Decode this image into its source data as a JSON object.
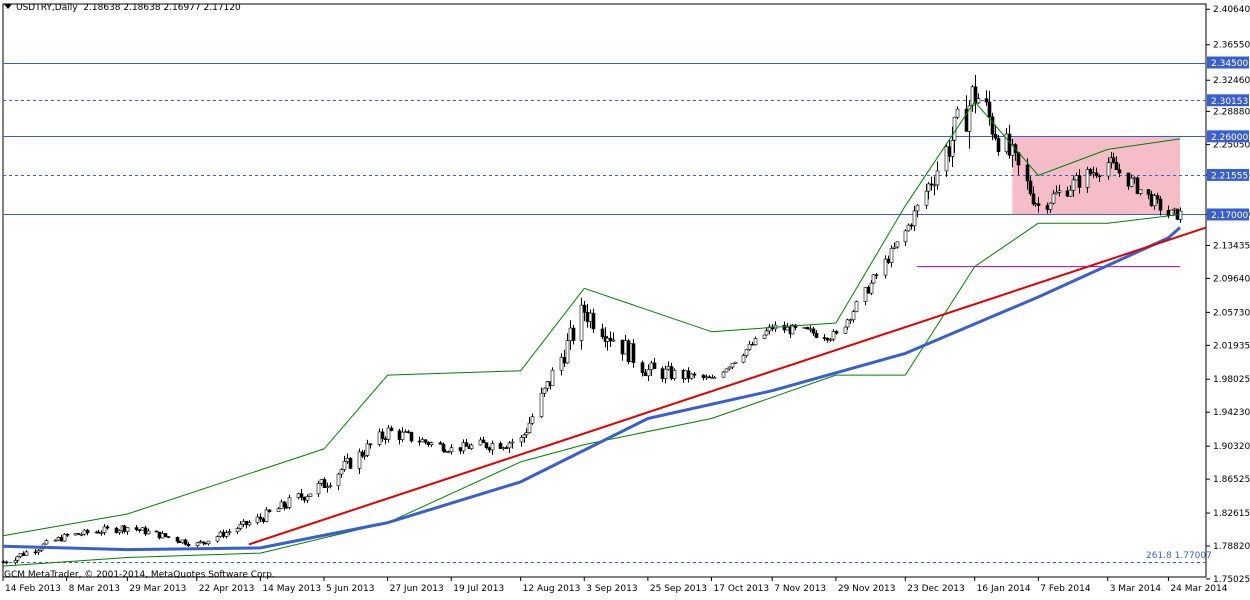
{
  "header": {
    "symbol": "USDTRY,Daily",
    "ohlc": "2.18638 2.18638 2.16977 2.17120"
  },
  "footer": {
    "copyright": "GCM MetaTrader, © 2001-2014, MetaQuotes Software Corp."
  },
  "annotations": {
    "fibo_label": "261.8 1.77007"
  },
  "colors": {
    "background": "#ffffff",
    "candle": "#000000",
    "bollinger": "#008000",
    "ma_long": "#3a5fcd",
    "trendline": "#dd0000",
    "hline": "#3a5fcd",
    "box_fill": "#f4b6c2",
    "grid": "#c0c0c0",
    "magenta_line": "#aa00aa"
  },
  "chart_data": {
    "type": "candlestick",
    "title": "USDTRY,Daily",
    "ylim": [
      1.7525,
      2.4124
    ],
    "y_ticks": [
      "2.40640",
      "2.36550",
      "2.32460",
      "2.28880",
      "2.25050",
      "2.21555",
      "2.17000",
      "2.13435",
      "2.09640",
      "2.05730",
      "2.01935",
      "1.98025",
      "1.94230",
      "1.90320",
      "1.86525",
      "1.82615",
      "1.78820",
      "1.75025"
    ],
    "x_ticks": [
      "14 Feb 2013",
      "8 Mar 2013",
      "29 Mar 2013",
      "22 Apr 2013",
      "14 May 2013",
      "5 Jun 2013",
      "27 Jun 2013",
      "19 Jul 2013",
      "12 Aug 2013",
      "3 Sep 2013",
      "25 Sep 2013",
      "17 Oct 2013",
      "7 Nov 2013",
      "29 Nov 2013",
      "23 Dec 2013",
      "16 Jan 2014",
      "7 Feb 2014",
      "3 Mar 2014",
      "24 Mar 2014"
    ],
    "levels": [
      {
        "value": 2.345,
        "label": "2.34500",
        "style": "solid"
      },
      {
        "value": 2.30153,
        "label": "2.30153",
        "style": "dashed"
      },
      {
        "value": 2.26,
        "label": "2.26000",
        "style": "solid"
      },
      {
        "value": 2.21555,
        "label": "2.21555",
        "style": "dashed"
      },
      {
        "value": 2.17,
        "label": "2.17000",
        "style": "solid"
      },
      {
        "value": 1.77007,
        "label": "",
        "style": "dashed"
      }
    ],
    "range_box": {
      "x_from": "29 Jan 2014",
      "x_to": "28 Mar 2014",
      "y_from": 2.17,
      "y_to": 2.26
    },
    "magenta_line": {
      "x_from": "27 Dec 2013",
      "x_to": "28 Mar 2014",
      "y": 2.11
    },
    "trendline": {
      "points": [
        [
          "10 May 2013",
          1.79
        ],
        [
          "28 Mar 2014",
          2.145
        ]
      ]
    },
    "series": [
      {
        "kind": "ohlc",
        "x": [
          "14 Feb 2013",
          "8 Mar 2013",
          "29 Mar 2013",
          "22 Apr 2013",
          "14 May 2013",
          "5 Jun 2013",
          "27 Jun 2013",
          "19 Jul 2013",
          "12 Aug 2013",
          "3 Sep 2013",
          "25 Sep 2013",
          "17 Oct 2013",
          "7 Nov 2013",
          "29 Nov 2013",
          "23 Dec 2013",
          "16 Jan 2014",
          "7 Feb 2014",
          "3 Mar 2014",
          "24 Mar 2014"
        ],
        "close": [
          1.77,
          1.8,
          1.81,
          1.79,
          1.82,
          1.86,
          1.92,
          1.9,
          1.91,
          2.06,
          1.99,
          1.98,
          2.04,
          2.03,
          2.15,
          2.31,
          2.18,
          2.23,
          2.17
        ],
        "high": [
          1.79,
          1.82,
          1.82,
          1.8,
          1.84,
          1.91,
          1.97,
          1.93,
          1.96,
          2.08,
          2.04,
          1.99,
          2.06,
          2.05,
          2.19,
          2.39,
          2.26,
          2.26,
          2.23
        ],
        "low": [
          1.75,
          1.79,
          1.78,
          1.78,
          1.79,
          1.84,
          1.9,
          1.89,
          1.88,
          1.95,
          1.95,
          1.96,
          2.01,
          2.0,
          2.13,
          2.16,
          2.17,
          2.18,
          2.17
        ]
      },
      {
        "kind": "ma",
        "x": [
          "14 Feb 2013",
          "29 Mar 2013",
          "14 May 2013",
          "27 Jun 2013",
          "12 Aug 2013",
          "25 Sep 2013",
          "7 Nov 2013",
          "23 Dec 2013",
          "7 Feb 2014",
          "24 Mar 2014",
          "28 Mar 2014"
        ],
        "values": [
          1.788,
          1.784,
          1.786,
          1.815,
          1.862,
          1.935,
          1.967,
          2.01,
          2.075,
          2.143,
          2.155
        ]
      },
      {
        "kind": "bollinger_upper",
        "x": [
          "14 Feb 2013",
          "29 Mar 2013",
          "5 Jun 2013",
          "27 Jun 2013",
          "12 Aug 2013",
          "3 Sep 2013",
          "17 Oct 2013",
          "29 Nov 2013",
          "23 Dec 2013",
          "16 Jan 2014",
          "7 Feb 2014",
          "3 Mar 2014",
          "28 Mar 2014"
        ],
        "values": [
          1.8,
          1.825,
          1.9,
          1.985,
          1.99,
          2.085,
          2.035,
          2.045,
          2.18,
          2.3,
          2.215,
          2.245,
          2.257
        ]
      },
      {
        "kind": "bollinger_lower",
        "x": [
          "14 Feb 2013",
          "29 Mar 2013",
          "14 May 2013",
          "27 Jun 2013",
          "12 Aug 2013",
          "3 Sep 2013",
          "17 Oct 2013",
          "29 Nov 2013",
          "23 Dec 2013",
          "16 Jan 2014",
          "7 Feb 2014",
          "3 Mar 2014",
          "28 Mar 2014"
        ],
        "values": [
          1.765,
          1.775,
          1.78,
          1.815,
          1.885,
          1.905,
          1.935,
          1.985,
          1.985,
          2.11,
          2.16,
          2.16,
          2.17
        ]
      }
    ]
  }
}
